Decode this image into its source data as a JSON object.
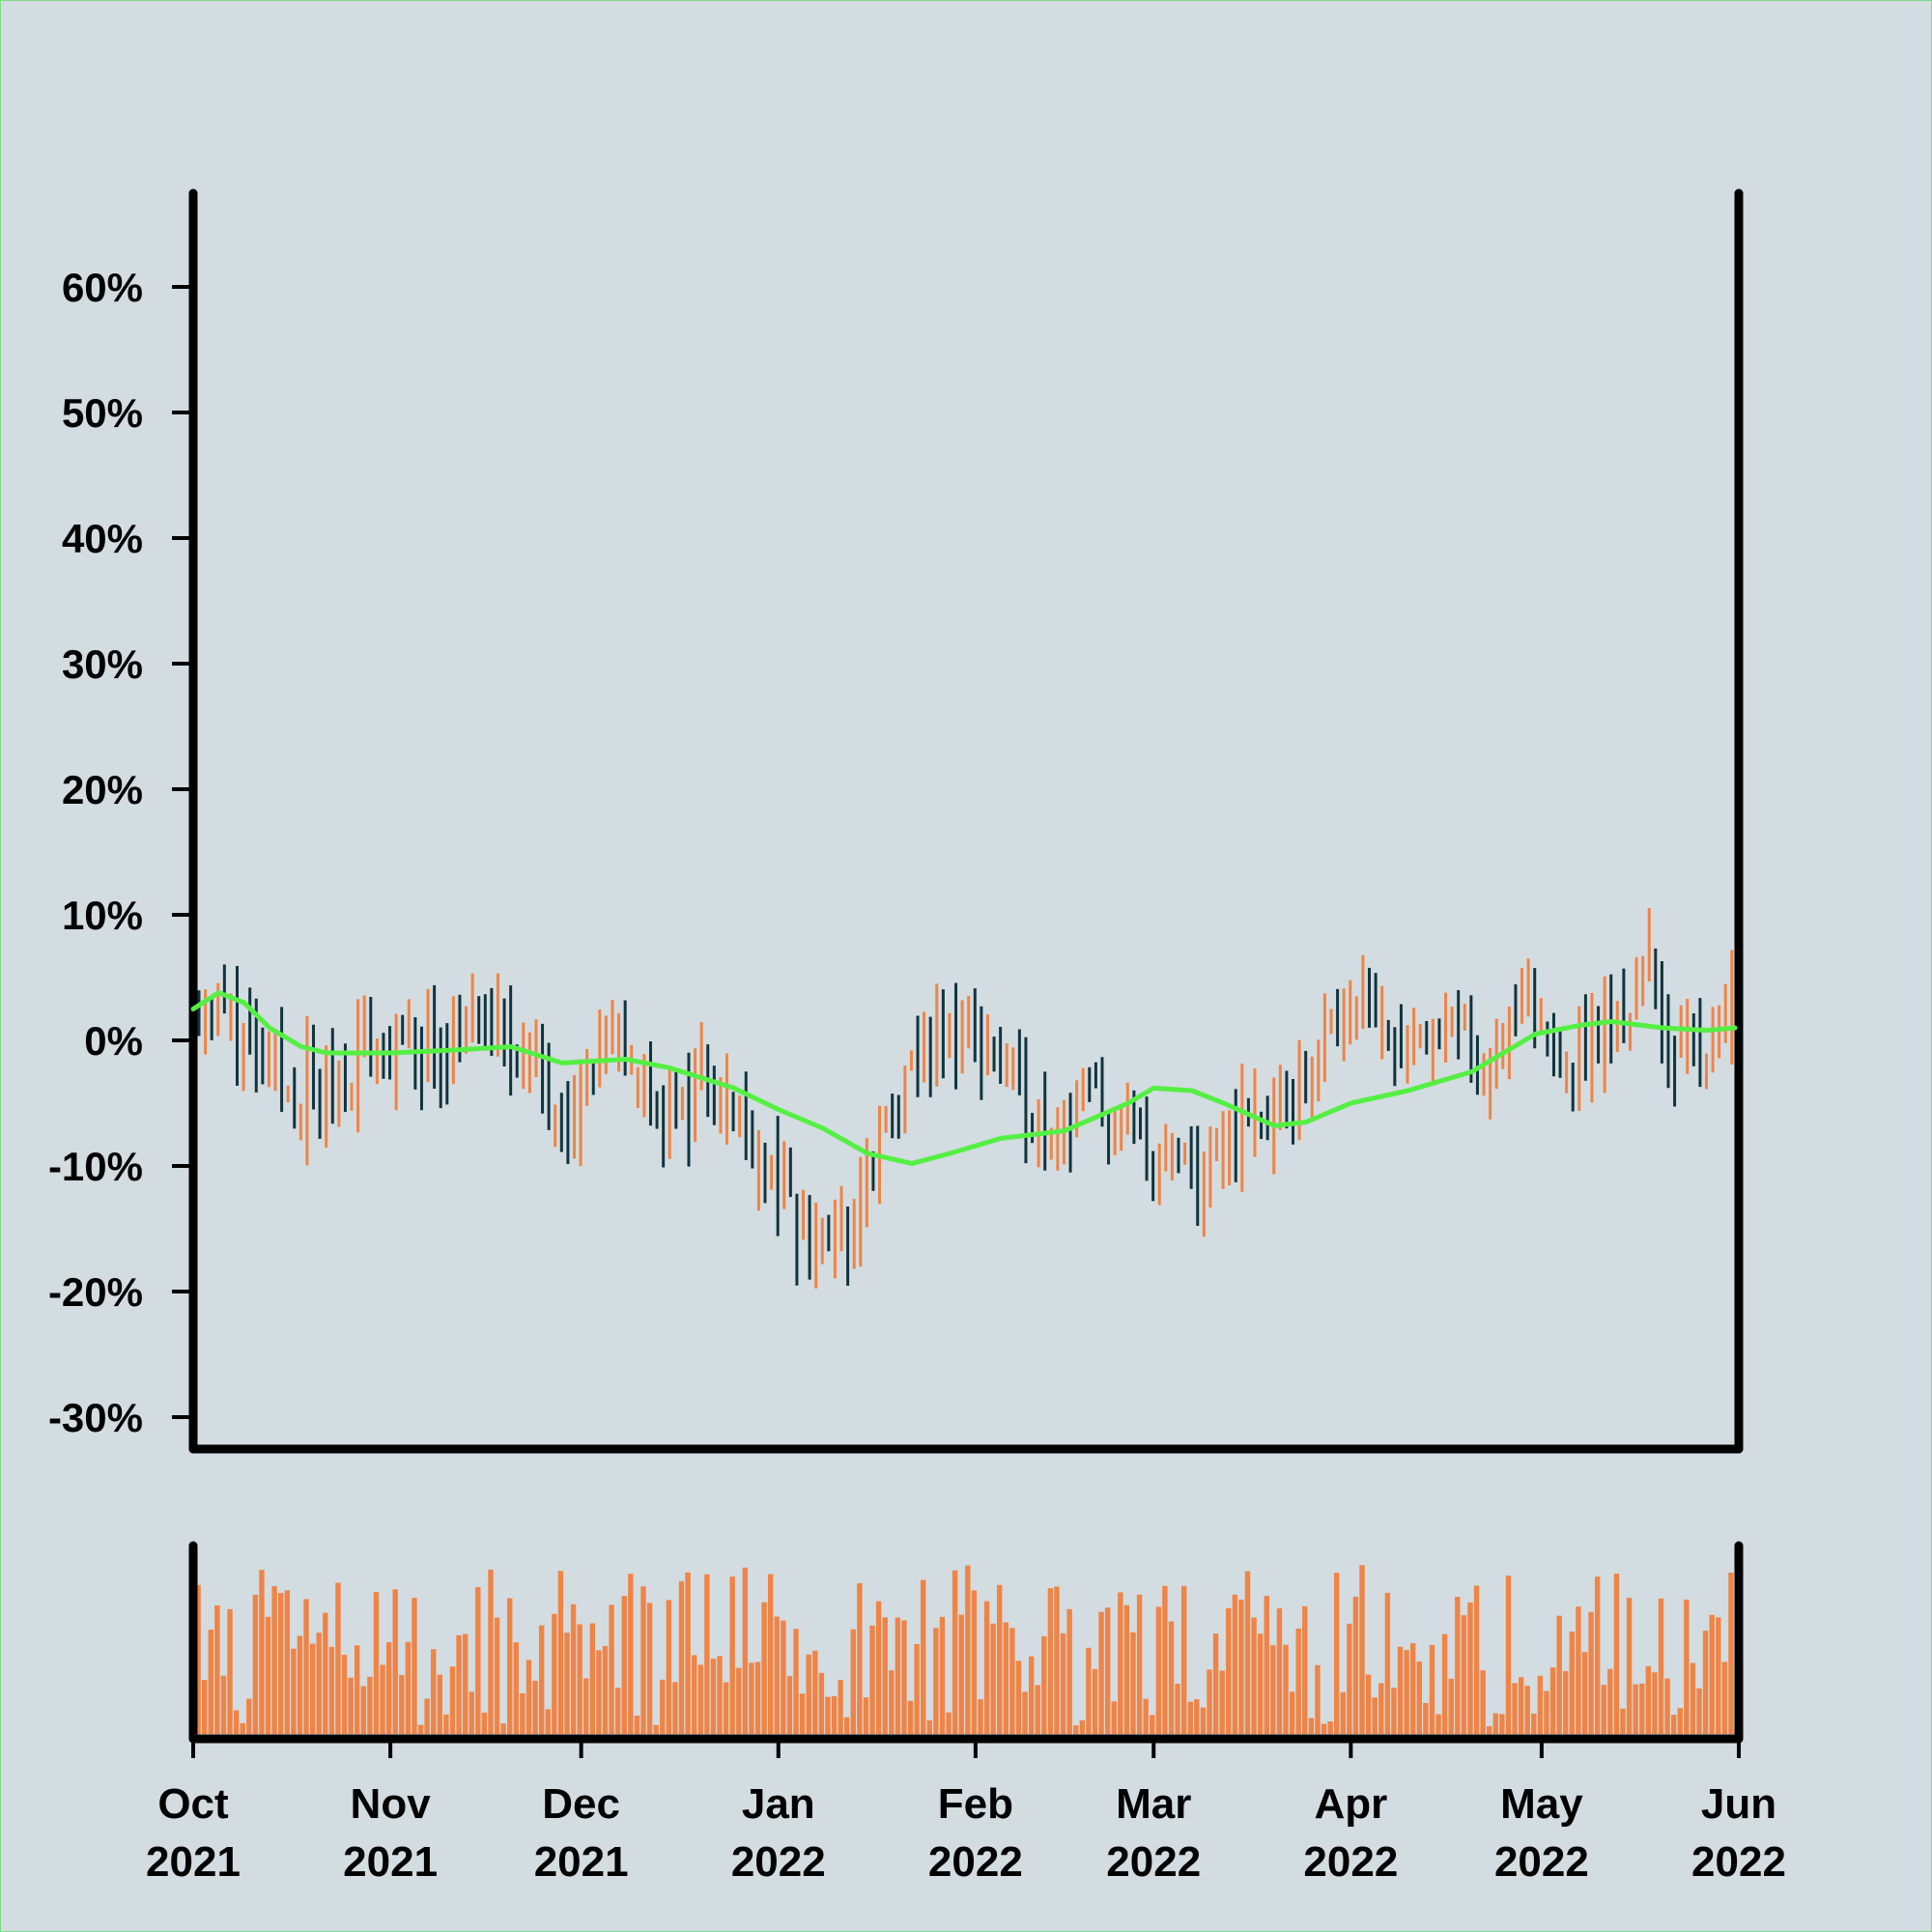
{
  "chart_data": {
    "type": "ohlc",
    "title": "",
    "xlabel": "",
    "ylabel": "",
    "ylim": [
      -30,
      68
    ],
    "y_ticks": [
      {
        "value": -30,
        "label": "-30%"
      },
      {
        "value": -20,
        "label": "-20%"
      },
      {
        "value": -10,
        "label": "-10%"
      },
      {
        "value": 0,
        "label": "0%"
      },
      {
        "value": 10,
        "label": "10%"
      },
      {
        "value": 20,
        "label": "20%"
      },
      {
        "value": 30,
        "label": "30%"
      },
      {
        "value": 40,
        "label": "40%"
      },
      {
        "value": 50,
        "label": "50%"
      },
      {
        "value": 60,
        "label": "60%"
      }
    ],
    "x_range": [
      "2021-10-01",
      "2022-06-01"
    ],
    "x_ticks": [
      {
        "date": "2021-10-01",
        "month": "Oct",
        "year": "2021"
      },
      {
        "date": "2021-11-01",
        "month": "Nov",
        "year": "2021"
      },
      {
        "date": "2021-12-01",
        "month": "Dec",
        "year": "2021"
      },
      {
        "date": "2022-01-01",
        "month": "Jan",
        "year": "2022"
      },
      {
        "date": "2022-02-01",
        "month": "Feb",
        "year": "2022"
      },
      {
        "date": "2022-03-01",
        "month": "Mar",
        "year": "2022"
      },
      {
        "date": "2022-04-01",
        "month": "Apr",
        "year": "2022"
      },
      {
        "date": "2022-05-01",
        "month": "May",
        "year": "2022"
      },
      {
        "date": "2022-06-01",
        "month": "Jun",
        "year": "2022"
      }
    ],
    "grid": false,
    "legend": "none",
    "colors": {
      "up": "#ef8447",
      "down": "#10343f",
      "moving_average": "#55ef44",
      "volume": "#ef8447",
      "axis": "#000000",
      "background": "#d3dce0"
    },
    "moving_average": [
      [
        "2021-10-01",
        2.5
      ],
      [
        "2021-10-05",
        3.8
      ],
      [
        "2021-10-09",
        3.0
      ],
      [
        "2021-10-13",
        1.0
      ],
      [
        "2021-10-18",
        -0.5
      ],
      [
        "2021-10-22",
        -1.0
      ],
      [
        "2021-11-01",
        -1.0
      ],
      [
        "2021-11-10",
        -0.8
      ],
      [
        "2021-11-20",
        -0.5
      ],
      [
        "2021-11-28",
        -1.8
      ],
      [
        "2021-12-08",
        -1.5
      ],
      [
        "2021-12-15",
        -2.2
      ],
      [
        "2021-12-25",
        -3.8
      ],
      [
        "2022-01-01",
        -5.5
      ],
      [
        "2022-01-08",
        -7.0
      ],
      [
        "2022-01-15",
        -9.0
      ],
      [
        "2022-01-22",
        -9.8
      ],
      [
        "2022-01-28",
        -9.0
      ],
      [
        "2022-02-05",
        -7.8
      ],
      [
        "2022-02-15",
        -7.2
      ],
      [
        "2022-02-25",
        -5.0
      ],
      [
        "2022-03-01",
        -3.8
      ],
      [
        "2022-03-07",
        -4.0
      ],
      [
        "2022-03-12",
        -5.0
      ],
      [
        "2022-03-20",
        -6.8
      ],
      [
        "2022-03-25",
        -6.5
      ],
      [
        "2022-04-01",
        -5.0
      ],
      [
        "2022-04-10",
        -4.0
      ],
      [
        "2022-04-20",
        -2.5
      ],
      [
        "2022-04-30",
        0.5
      ],
      [
        "2022-05-07",
        1.2
      ],
      [
        "2022-05-12",
        1.5
      ],
      [
        "2022-05-20",
        1.0
      ],
      [
        "2022-05-27",
        0.8
      ],
      [
        "2022-06-01",
        1.0
      ]
    ],
    "price_anchors": [
      [
        "2021-10-01",
        3.0
      ],
      [
        "2021-10-05",
        2.5
      ],
      [
        "2021-10-12",
        -4.0
      ],
      [
        "2021-10-20",
        -3.5
      ],
      [
        "2021-10-27",
        0.0
      ],
      [
        "2021-11-05",
        -1.0
      ],
      [
        "2021-11-14",
        1.0
      ],
      [
        "2021-11-22",
        -1.0
      ],
      [
        "2021-11-28",
        -5.0
      ],
      [
        "2021-12-05",
        0.0
      ],
      [
        "2021-12-15",
        -7.0
      ],
      [
        "2021-12-20",
        -2.0
      ],
      [
        "2021-12-28",
        -8.0
      ],
      [
        "2022-01-03",
        -15.0
      ],
      [
        "2022-01-11",
        -16.0
      ],
      [
        "2022-01-16",
        -8.0
      ],
      [
        "2022-01-25",
        0.0
      ],
      [
        "2022-01-30",
        1.0
      ],
      [
        "2022-02-10",
        -6.0
      ],
      [
        "2022-02-18",
        -5.0
      ],
      [
        "2022-02-25",
        -8.0
      ],
      [
        "2022-03-03",
        -10.0
      ],
      [
        "2022-03-09",
        -12.0
      ],
      [
        "2022-03-12",
        -7.0
      ],
      [
        "2022-03-20",
        -6.0
      ],
      [
        "2022-03-25",
        -2.0
      ],
      [
        "2022-04-01",
        5.0
      ],
      [
        "2022-04-07",
        0.0
      ],
      [
        "2022-04-15",
        1.0
      ],
      [
        "2022-04-22",
        -1.0
      ],
      [
        "2022-04-27",
        2.0
      ],
      [
        "2022-05-05",
        -1.0
      ],
      [
        "2022-05-12",
        1.0
      ],
      [
        "2022-05-17",
        6.0
      ],
      [
        "2022-05-21",
        -2.0
      ],
      [
        "2022-05-26",
        0.0
      ],
      [
        "2022-06-01",
        7.0
      ]
    ]
  }
}
